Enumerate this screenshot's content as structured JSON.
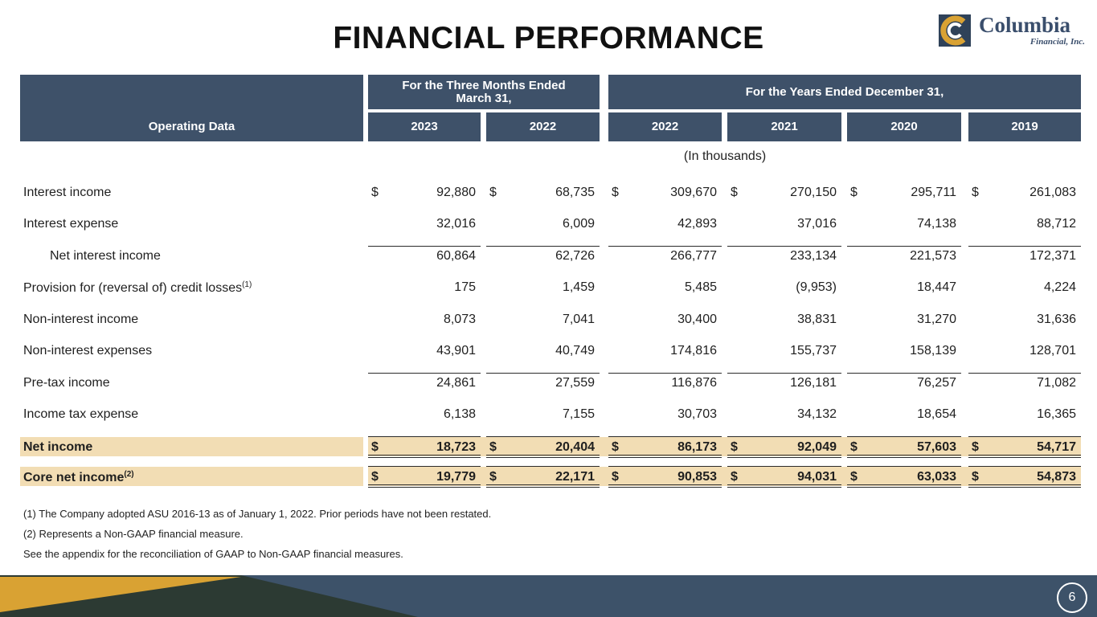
{
  "title": "FINANCIAL PERFORMANCE",
  "logo": {
    "name": "Columbia",
    "sub": "Financial, Inc."
  },
  "table": {
    "row_header": "Operating Data",
    "group_headers": [
      "For the Three Months Ended March 31,",
      "For the Years Ended December 31,"
    ],
    "columns": [
      "2023",
      "2022",
      "2022",
      "2021",
      "2020",
      "2019"
    ],
    "units": "(In thousands)",
    "currency": "$",
    "rows": [
      {
        "label": "Interest income",
        "values": [
          "92,880",
          "68,735",
          "309,670",
          "270,150",
          "295,711",
          "261,083"
        ]
      },
      {
        "label": "Interest expense",
        "values": [
          "32,016",
          "6,009",
          "42,893",
          "37,016",
          "74,138",
          "88,712"
        ]
      },
      {
        "label": "Net interest income",
        "values": [
          "60,864",
          "62,726",
          "266,777",
          "233,134",
          "221,573",
          "172,371"
        ]
      },
      {
        "label": "Provision for (reversal of) credit losses",
        "sup": "(1)",
        "values": [
          "175",
          "1,459",
          "5,485",
          "(9,953)",
          "18,447",
          "4,224"
        ]
      },
      {
        "label": "Non-interest income",
        "values": [
          "8,073",
          "7,041",
          "30,400",
          "38,831",
          "31,270",
          "31,636"
        ]
      },
      {
        "label": "Non-interest expenses",
        "values": [
          "43,901",
          "40,749",
          "174,816",
          "155,737",
          "158,139",
          "128,701"
        ]
      },
      {
        "label": "Pre-tax income",
        "values": [
          "24,861",
          "27,559",
          "116,876",
          "126,181",
          "76,257",
          "71,082"
        ]
      },
      {
        "label": "Income tax expense",
        "values": [
          "6,138",
          "7,155",
          "30,703",
          "34,132",
          "18,654",
          "16,365"
        ]
      },
      {
        "label": "Net income",
        "values": [
          "18,723",
          "20,404",
          "86,173",
          "92,049",
          "57,603",
          "54,717"
        ]
      },
      {
        "label": "Core net income",
        "sup": "(2)",
        "values": [
          "19,779",
          "22,171",
          "90,853",
          "94,031",
          "63,033",
          "54,873"
        ]
      }
    ]
  },
  "footnotes": [
    "(1) The Company adopted ASU 2016-13 as of January 1, 2022.  Prior periods have not been restated.",
    "(2) Represents a Non-GAAP financial measure.",
    "See the appendix for the reconciliation of GAAP to Non-GAAP financial measures."
  ],
  "page_number": "6",
  "colors": {
    "header_bg": "#3e5169",
    "highlight": "#f2ddb4",
    "footer_navy": "#3d5269",
    "footer_gold": "#d9a233",
    "footer_dark": "#2c3a33"
  }
}
